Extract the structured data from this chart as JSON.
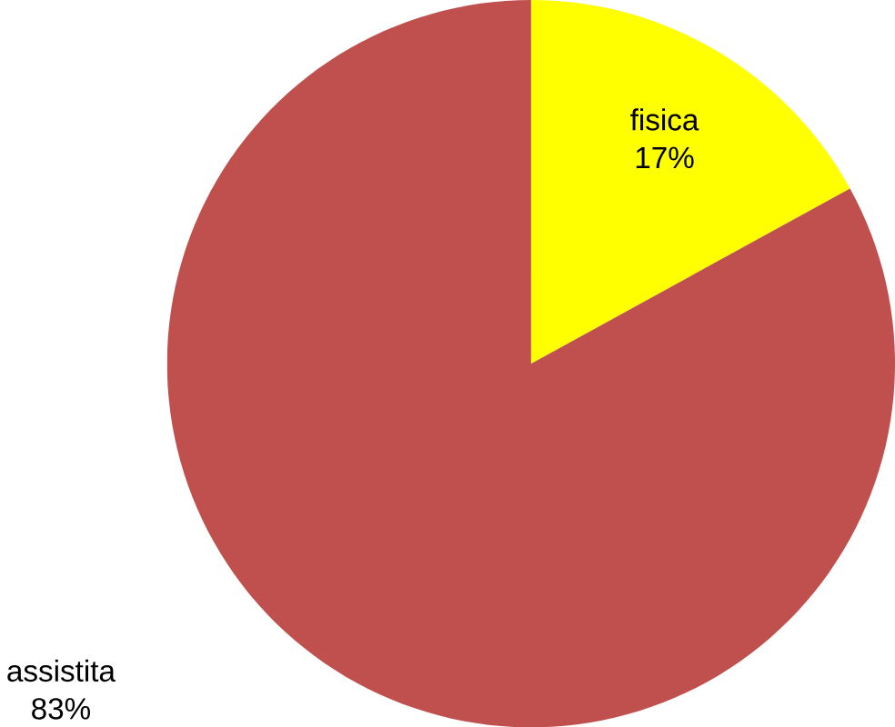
{
  "chart_data": {
    "type": "pie",
    "categories": [
      "fisica",
      "assistita"
    ],
    "values": [
      17,
      83
    ],
    "colors": [
      "#ffff00",
      "#c0504d"
    ],
    "value_labels": [
      "17%",
      "83%"
    ]
  }
}
